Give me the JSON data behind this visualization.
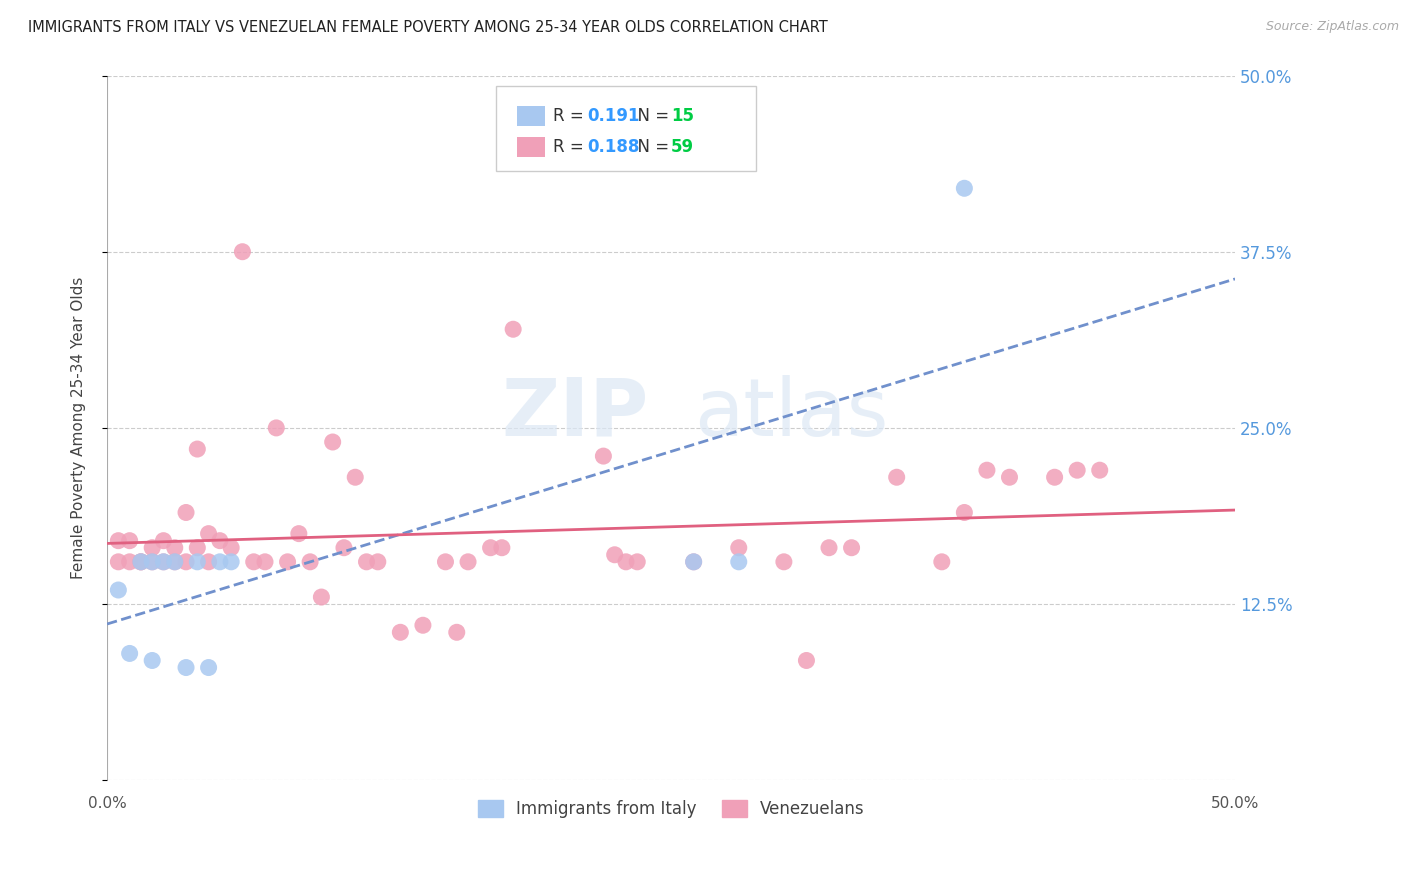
{
  "title": "IMMIGRANTS FROM ITALY VS VENEZUELAN FEMALE POVERTY AMONG 25-34 YEAR OLDS CORRELATION CHART",
  "source": "Source: ZipAtlas.com",
  "ylabel": "Female Poverty Among 25-34 Year Olds",
  "xlim": [
    0.0,
    0.5
  ],
  "ylim": [
    0.0,
    0.5
  ],
  "italy_R": 0.191,
  "italy_N": 15,
  "venezuela_R": 0.188,
  "venezuela_N": 59,
  "italy_color": "#a8c8f0",
  "venezuela_color": "#f0a0b8",
  "italy_line_color": "#7090cc",
  "venezuela_line_color": "#e06080",
  "r_color": "#3399ff",
  "n_color": "#00cc44",
  "legend_label_italy": "Immigrants from Italy",
  "legend_label_venezuela": "Venezuelans",
  "watermark_zip": "ZIP",
  "watermark_atlas": "atlas",
  "italy_x": [
    0.005,
    0.01,
    0.015,
    0.02,
    0.02,
    0.025,
    0.03,
    0.035,
    0.04,
    0.045,
    0.05,
    0.055,
    0.26,
    0.28,
    0.38
  ],
  "italy_y": [
    0.135,
    0.09,
    0.155,
    0.155,
    0.085,
    0.155,
    0.155,
    0.08,
    0.155,
    0.08,
    0.155,
    0.155,
    0.155,
    0.155,
    0.42
  ],
  "venezuela_x": [
    0.005,
    0.005,
    0.01,
    0.01,
    0.015,
    0.015,
    0.02,
    0.02,
    0.025,
    0.025,
    0.03,
    0.03,
    0.035,
    0.035,
    0.04,
    0.04,
    0.045,
    0.045,
    0.05,
    0.055,
    0.06,
    0.065,
    0.07,
    0.075,
    0.08,
    0.085,
    0.09,
    0.095,
    0.1,
    0.105,
    0.11,
    0.115,
    0.12,
    0.13,
    0.14,
    0.15,
    0.155,
    0.16,
    0.17,
    0.175,
    0.18,
    0.22,
    0.225,
    0.23,
    0.235,
    0.26,
    0.28,
    0.3,
    0.31,
    0.32,
    0.33,
    0.35,
    0.37,
    0.38,
    0.39,
    0.4,
    0.42,
    0.43,
    0.44
  ],
  "venezuela_y": [
    0.155,
    0.17,
    0.155,
    0.17,
    0.155,
    0.155,
    0.155,
    0.165,
    0.155,
    0.17,
    0.155,
    0.165,
    0.155,
    0.19,
    0.235,
    0.165,
    0.155,
    0.175,
    0.17,
    0.165,
    0.375,
    0.155,
    0.155,
    0.25,
    0.155,
    0.175,
    0.155,
    0.13,
    0.24,
    0.165,
    0.215,
    0.155,
    0.155,
    0.105,
    0.11,
    0.155,
    0.105,
    0.155,
    0.165,
    0.165,
    0.32,
    0.23,
    0.16,
    0.155,
    0.155,
    0.155,
    0.165,
    0.155,
    0.085,
    0.165,
    0.165,
    0.215,
    0.155,
    0.19,
    0.22,
    0.215,
    0.215,
    0.22,
    0.22
  ]
}
